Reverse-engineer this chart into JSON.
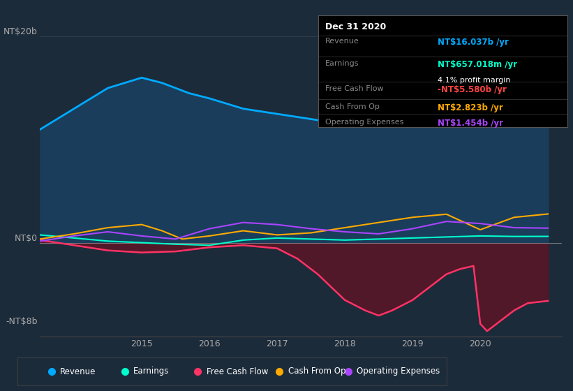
{
  "bg_color": "#1c2b3a",
  "info_box": {
    "title": "Dec 31 2020",
    "rows": [
      {
        "label": "Revenue",
        "value": "NT$16.037b /yr",
        "value_color": "#00aaff"
      },
      {
        "label": "Earnings",
        "value": "NT$657.018m /yr",
        "value_color": "#00ffcc",
        "sub": "4.1% profit margin",
        "sub_color": "#ffffff"
      },
      {
        "label": "Free Cash Flow",
        "value": "-NT$5.580b /yr",
        "value_color": "#ff4444"
      },
      {
        "label": "Cash From Op",
        "value": "NT$2.823b /yr",
        "value_color": "#ffaa00"
      },
      {
        "label": "Operating Expenses",
        "value": "NT$1.454b /yr",
        "value_color": "#aa44ff"
      }
    ]
  },
  "ylim": [
    -9,
    22
  ],
  "xlim": [
    2013.5,
    2021.2
  ],
  "xticks": [
    2015,
    2016,
    2017,
    2018,
    2019,
    2020
  ],
  "legend": [
    {
      "label": "Revenue",
      "color": "#00aaff"
    },
    {
      "label": "Earnings",
      "color": "#00ffcc"
    },
    {
      "label": "Free Cash Flow",
      "color": "#ff3366"
    },
    {
      "label": "Cash From Op",
      "color": "#ffaa00"
    },
    {
      "label": "Operating Expenses",
      "color": "#aa44ff"
    }
  ],
  "revenue": {
    "x": [
      2013.5,
      2014.0,
      2014.5,
      2015.0,
      2015.3,
      2015.7,
      2016.0,
      2016.5,
      2017.0,
      2017.5,
      2018.0,
      2018.3,
      2018.6,
      2019.0,
      2019.3,
      2019.6,
      2019.9,
      2020.0,
      2020.3,
      2020.7,
      2021.0
    ],
    "y": [
      11.0,
      13.0,
      15.0,
      16.0,
      15.5,
      14.5,
      14.0,
      13.0,
      12.5,
      12.0,
      11.5,
      12.0,
      13.5,
      16.0,
      17.5,
      18.0,
      17.0,
      15.5,
      15.8,
      15.5,
      16.037
    ],
    "color": "#00aaff",
    "fill_color": "#1a4060",
    "lw": 2.0
  },
  "earnings": {
    "x": [
      2013.5,
      2014.0,
      2014.5,
      2015.0,
      2015.5,
      2016.0,
      2016.5,
      2017.0,
      2017.5,
      2018.0,
      2018.5,
      2019.0,
      2019.5,
      2020.0,
      2020.5,
      2021.0
    ],
    "y": [
      0.8,
      0.5,
      0.2,
      0.05,
      -0.1,
      -0.2,
      0.3,
      0.5,
      0.4,
      0.3,
      0.4,
      0.5,
      0.6,
      0.7,
      0.65,
      0.657
    ],
    "color": "#00ffcc",
    "lw": 1.5
  },
  "free_cash_flow": {
    "x": [
      2013.5,
      2014.0,
      2014.5,
      2015.0,
      2015.5,
      2016.0,
      2016.5,
      2017.0,
      2017.3,
      2017.6,
      2018.0,
      2018.3,
      2018.5,
      2018.7,
      2019.0,
      2019.3,
      2019.5,
      2019.7,
      2019.9,
      2020.0,
      2020.1,
      2020.3,
      2020.5,
      2020.7,
      2021.0
    ],
    "y": [
      0.3,
      -0.2,
      -0.7,
      -0.9,
      -0.8,
      -0.4,
      -0.2,
      -0.5,
      -1.5,
      -3.0,
      -5.5,
      -6.5,
      -7.0,
      -6.5,
      -5.5,
      -4.0,
      -3.0,
      -2.5,
      -2.2,
      -7.8,
      -8.5,
      -7.5,
      -6.5,
      -5.8,
      -5.58
    ],
    "color": "#ff3366",
    "fill_color": "#5a1525",
    "lw": 1.8
  },
  "cash_from_op": {
    "x": [
      2013.5,
      2014.0,
      2014.5,
      2015.0,
      2015.3,
      2015.6,
      2016.0,
      2016.5,
      2017.0,
      2017.5,
      2018.0,
      2018.5,
      2019.0,
      2019.5,
      2020.0,
      2020.5,
      2021.0
    ],
    "y": [
      0.4,
      0.9,
      1.5,
      1.8,
      1.2,
      0.4,
      0.7,
      1.2,
      0.8,
      1.0,
      1.5,
      2.0,
      2.5,
      2.8,
      1.3,
      2.5,
      2.823
    ],
    "color": "#ffaa00",
    "lw": 1.5
  },
  "operating_expenses": {
    "x": [
      2013.5,
      2014.0,
      2014.5,
      2015.0,
      2015.5,
      2016.0,
      2016.5,
      2017.0,
      2017.5,
      2018.0,
      2018.5,
      2019.0,
      2019.5,
      2020.0,
      2020.5,
      2021.0
    ],
    "y": [
      0.2,
      0.7,
      1.1,
      0.7,
      0.4,
      1.4,
      2.0,
      1.8,
      1.4,
      1.1,
      0.9,
      1.4,
      2.1,
      1.9,
      1.5,
      1.454
    ],
    "color": "#aa44ff",
    "lw": 1.5
  }
}
